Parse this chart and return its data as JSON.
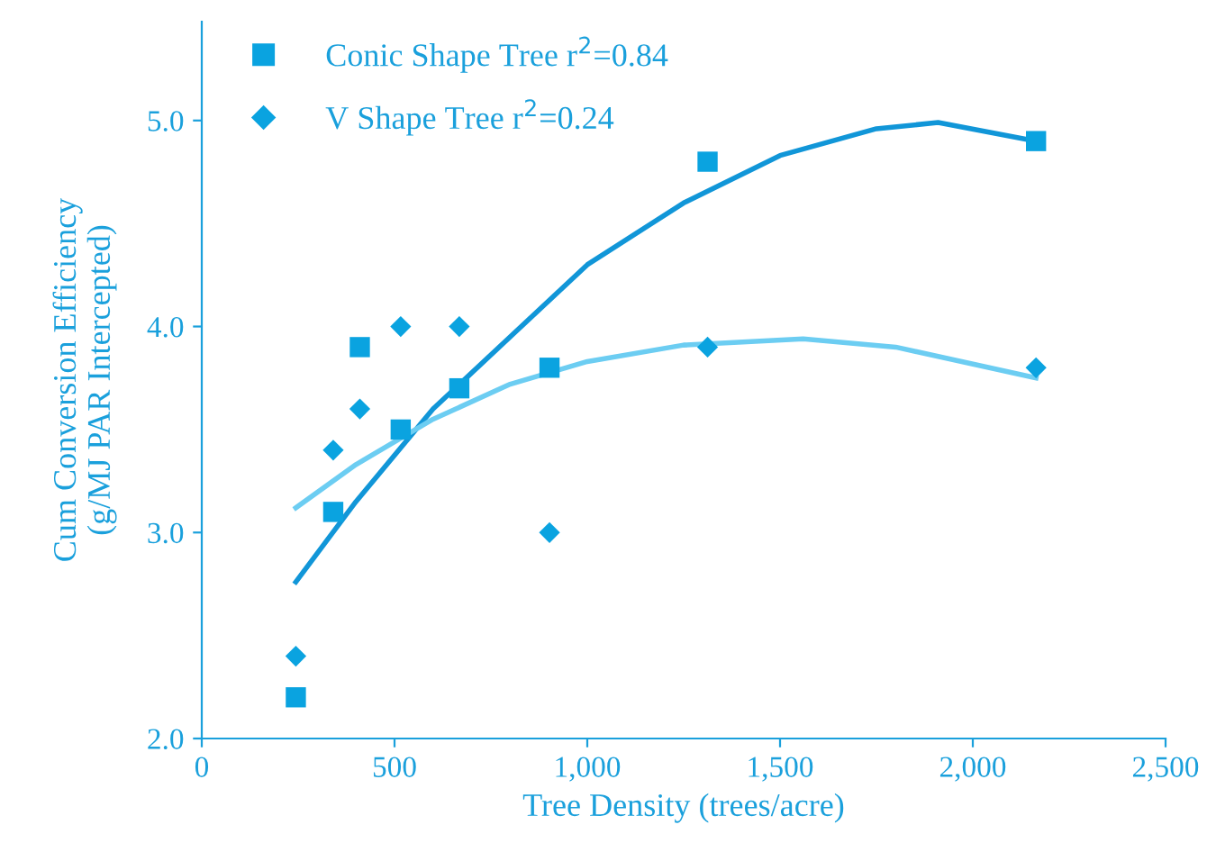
{
  "chart_data": {
    "type": "scatter",
    "xlabel": "Tree Density (trees/acre)",
    "ylabel": "Cum Conversion Efficiency\n(g/MJ PAR Intercepted)",
    "xlim": [
      0,
      2500
    ],
    "xticks": [
      0,
      500,
      {
        "value": 1000,
        "label": "1,000"
      },
      {
        "value": 1500,
        "label": "1,500"
      },
      {
        "value": 2000,
        "label": "2,000"
      },
      {
        "value": 2500,
        "label": "2,500"
      }
    ],
    "ylim": [
      2.0,
      5.48
    ],
    "yticks": [
      {
        "value": 2,
        "label": "2.0"
      },
      {
        "value": 3,
        "label": "3.0"
      },
      {
        "value": 4,
        "label": "4.0"
      },
      {
        "value": 5,
        "label": "5.0"
      }
    ],
    "grid": false,
    "legend": "top left",
    "series": [
      {
        "name": "Conic Shape Tree r$^{2}$=0.84",
        "marker": "square",
        "color": "#0aa3e0",
        "x": [
          244,
          341,
          410,
          516,
          668,
          902,
          1312,
          2164
        ],
        "values": [
          2.2,
          3.1,
          3.9,
          3.5,
          3.7,
          3.8,
          4.8,
          4.9
        ]
      },
      {
        "name": "V Shape Tree r$^{2}$=0.24",
        "marker": "diamond",
        "color": "#0aa3e0",
        "x": [
          244,
          341,
          410,
          516,
          668,
          902,
          1312,
          2164
        ],
        "values": [
          2.4,
          3.4,
          3.6,
          4.0,
          4.0,
          3.0,
          3.9,
          3.8
        ]
      },
      {
        "type": "line",
        "color": "#1196d8",
        "x": [
          244,
          400,
          600,
          800,
          1000,
          1250,
          1500,
          1750,
          1910,
          2164
        ],
        "values": [
          2.76,
          3.15,
          3.6,
          3.95,
          4.3,
          4.6,
          4.83,
          4.96,
          4.99,
          4.9
        ]
      },
      {
        "type": "line",
        "color": "#6ccdf2",
        "x": [
          244,
          400,
          600,
          800,
          1000,
          1250,
          1560,
          1800,
          2164
        ],
        "values": [
          3.12,
          3.33,
          3.55,
          3.72,
          3.83,
          3.91,
          3.94,
          3.9,
          3.75
        ]
      }
    ]
  }
}
